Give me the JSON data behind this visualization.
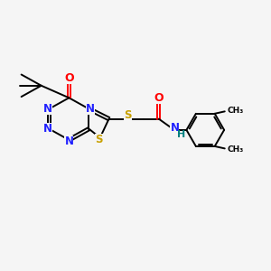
{
  "background_color": "#f5f5f5",
  "figure_size": [
    3.0,
    3.0
  ],
  "dpi": 100,
  "bond_color": "#000000",
  "N_color": "#2020ff",
  "S_color": "#c8a000",
  "O_color": "#ff0000",
  "H_color": "#008080",
  "lw": 1.4,
  "fs": 8.5,
  "xlim": [
    0,
    12
  ],
  "ylim": [
    0,
    9
  ]
}
